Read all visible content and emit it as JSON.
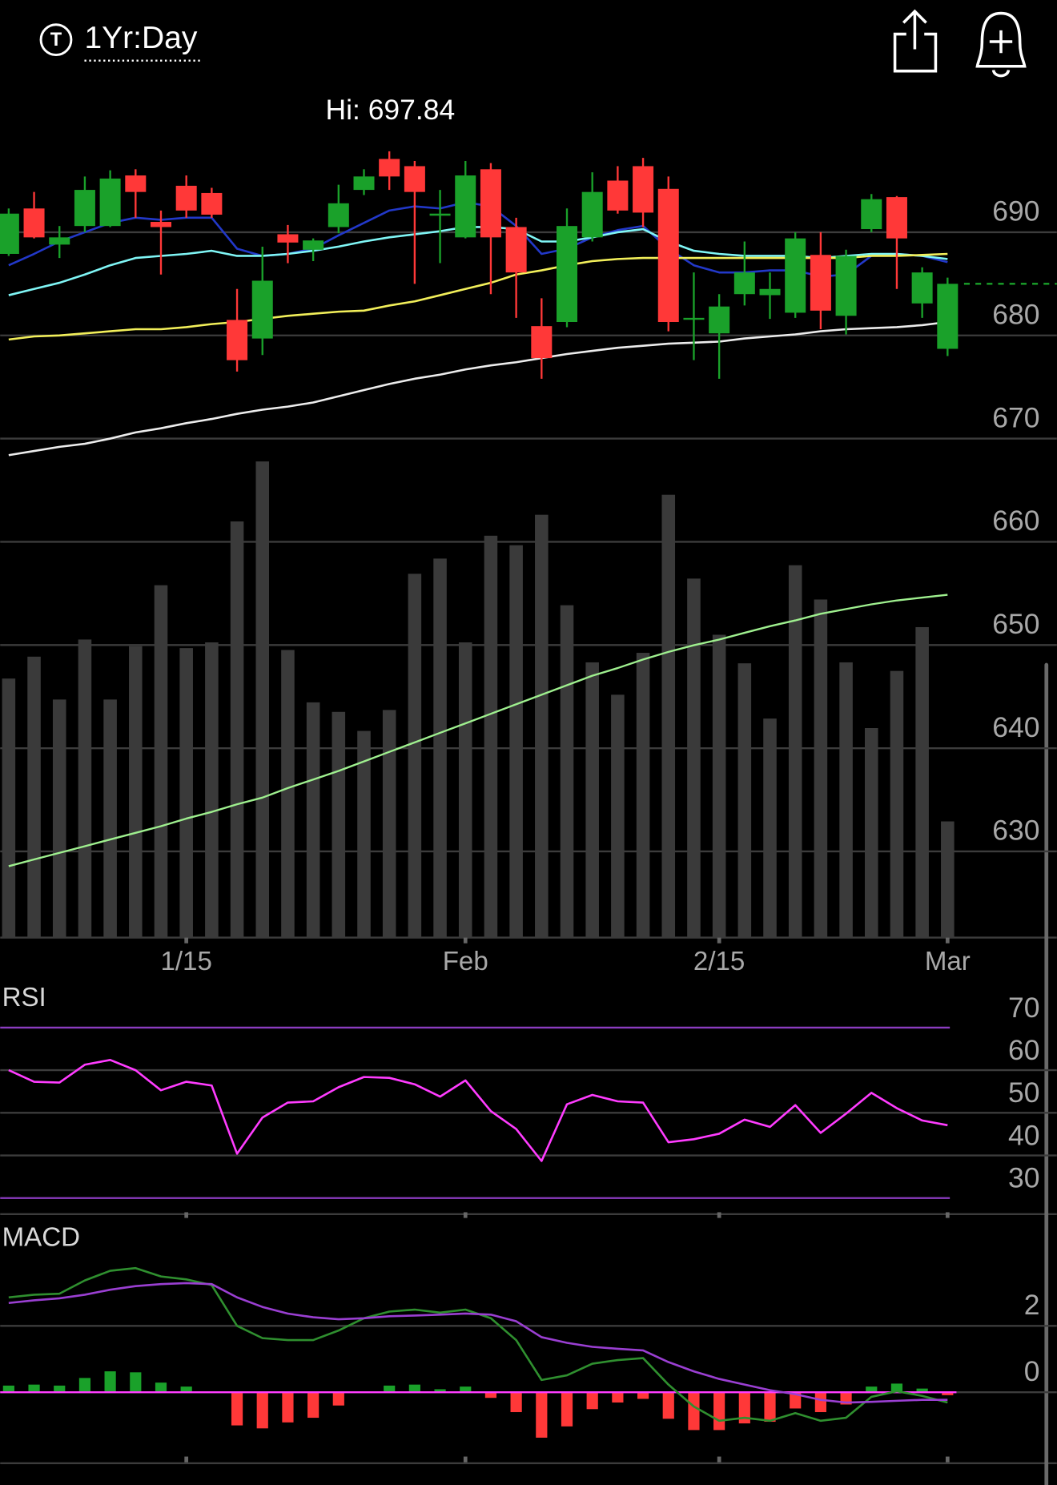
{
  "header": {
    "icon": "T",
    "period": "1Yr:Day"
  },
  "chart_data": [
    {
      "type": "candlestick",
      "annotation": "Hi: 697.84",
      "categories": [
        null,
        null,
        null,
        null,
        null,
        null,
        null,
        "1/15",
        null,
        null,
        null,
        null,
        null,
        null,
        null,
        null,
        null,
        null,
        "Feb",
        null,
        null,
        null,
        null,
        null,
        null,
        null,
        null,
        null,
        "2/15",
        null,
        null,
        null,
        null,
        null,
        null,
        null,
        null,
        "Mar"
      ],
      "open": [
        687.9,
        692.3,
        688.8,
        690.6,
        690.6,
        695.5,
        691.0,
        694.5,
        693.8,
        681.5,
        679.7,
        689.8,
        688.3,
        690.5,
        694.1,
        697.1,
        696.4,
        691.6,
        689.5,
        696.1,
        690.5,
        680.9,
        681.3,
        689.5,
        695.0,
        696.4,
        694.2,
        681.6,
        680.2,
        684.0,
        683.9,
        682.2,
        687.8,
        681.9,
        690.3,
        693.4,
        683.1,
        678.7
      ],
      "high": [
        692.3,
        693.9,
        690.6,
        695.4,
        696.0,
        696.1,
        692.1,
        695.5,
        694.3,
        684.5,
        688.6,
        690.7,
        689.4,
        694.6,
        696.1,
        697.84,
        696.9,
        694.1,
        696.9,
        696.7,
        691.4,
        683.6,
        692.3,
        695.8,
        696.4,
        697.2,
        695.4,
        686.1,
        684.0,
        689.1,
        686.1,
        690.0,
        690.0,
        688.3,
        693.7,
        693.5,
        686.6,
        685.6
      ],
      "low": [
        687.7,
        689.4,
        687.5,
        690.0,
        690.5,
        691.4,
        685.9,
        691.4,
        691.4,
        676.5,
        678.1,
        687.0,
        687.2,
        689.9,
        693.6,
        694.1,
        685.0,
        687.0,
        689.4,
        684.0,
        681.7,
        675.8,
        680.8,
        689.1,
        691.8,
        690.5,
        680.4,
        677.6,
        675.8,
        682.9,
        681.6,
        681.7,
        680.6,
        680.1,
        690.0,
        684.5,
        681.7,
        678.0
      ],
      "close": [
        691.8,
        689.5,
        689.5,
        694.1,
        695.2,
        693.9,
        690.5,
        692.1,
        691.7,
        677.6,
        685.3,
        689.0,
        689.2,
        692.8,
        695.4,
        695.4,
        693.9,
        691.8,
        695.5,
        689.5,
        686.1,
        677.8,
        690.6,
        693.9,
        692.1,
        691.9,
        681.3,
        681.7,
        682.8,
        686.1,
        684.5,
        689.4,
        682.4,
        687.7,
        693.2,
        689.4,
        686.1,
        685.0
      ],
      "up_color": "#1aa12a",
      "down_color": "#ff3838",
      "overlays": [
        {
          "color": "#2238c8",
          "values": [
            686.8,
            687.9,
            689.1,
            690.0,
            690.9,
            691.4,
            691.2,
            691.4,
            691.4,
            688.4,
            687.7,
            687.9,
            688.4,
            689.7,
            690.9,
            692.1,
            692.5,
            692.3,
            692.9,
            692.5,
            690.6,
            687.9,
            688.4,
            689.5,
            690.2,
            690.6,
            688.4,
            686.8,
            686.1,
            686.1,
            686.3,
            686.3,
            685.7,
            685.9,
            687.7,
            687.9,
            687.7,
            687.1
          ]
        },
        {
          "color": "#7ff5f5",
          "values": [
            683.9,
            684.5,
            685.1,
            685.9,
            686.8,
            687.5,
            687.7,
            687.9,
            688.2,
            687.7,
            687.7,
            687.9,
            688.2,
            688.6,
            689.1,
            689.5,
            689.8,
            690.1,
            690.5,
            690.5,
            690.3,
            689.1,
            689.1,
            689.5,
            690.0,
            690.3,
            689.1,
            688.2,
            687.9,
            687.7,
            687.7,
            687.7,
            687.5,
            687.7,
            687.9,
            687.9,
            687.7,
            687.4
          ]
        },
        {
          "color": "#f2ef5a",
          "values": [
            679.6,
            679.9,
            680.0,
            680.2,
            680.4,
            680.6,
            680.6,
            680.8,
            681.1,
            681.3,
            681.6,
            681.9,
            682.1,
            682.3,
            682.4,
            682.9,
            683.3,
            683.9,
            684.5,
            685.1,
            685.9,
            686.3,
            686.8,
            687.2,
            687.4,
            687.5,
            687.5,
            687.5,
            687.5,
            687.5,
            687.5,
            687.5,
            687.5,
            687.5,
            687.7,
            687.7,
            687.8,
            687.9
          ]
        },
        {
          "color": "#ececec",
          "values": [
            668.4,
            668.8,
            669.2,
            669.5,
            670.0,
            670.6,
            671.0,
            671.5,
            671.9,
            672.4,
            672.8,
            673.1,
            673.5,
            674.1,
            674.7,
            675.3,
            675.8,
            676.2,
            676.7,
            677.1,
            677.4,
            677.8,
            678.2,
            678.5,
            678.8,
            679.0,
            679.2,
            679.3,
            679.4,
            679.7,
            679.9,
            680.1,
            680.4,
            680.6,
            680.7,
            680.8,
            681.0,
            681.3
          ]
        }
      ],
      "ylim": [
        621.65,
        704.7
      ],
      "yticks": [
        630,
        640,
        650,
        660,
        670,
        680,
        690
      ],
      "grid": true,
      "grid_color": "#3c3c3c",
      "volume": [
        272,
        295,
        250,
        313,
        250,
        306,
        370,
        304,
        310,
        437,
        500,
        302,
        247,
        237,
        217,
        239,
        382,
        398,
        310,
        422,
        412,
        444,
        349,
        289,
        255,
        299,
        465,
        377,
        318,
        288,
        230,
        391,
        355,
        289,
        220,
        280,
        326,
        122
      ],
      "volume_color": "#3a3a3a",
      "volume_lim": [
        0,
        900
      ],
      "volume_ma": {
        "color": "#9ff08f",
        "values": [
          75,
          82,
          89,
          96,
          103,
          110,
          117,
          125,
          132,
          140,
          147,
          157,
          166,
          175,
          185,
          195,
          205,
          215,
          225,
          235,
          245,
          255,
          265,
          275,
          283,
          292,
          300,
          307,
          313,
          320,
          327,
          333,
          340,
          345,
          350,
          354,
          357,
          360
        ]
      },
      "last_color": "#1aa12a"
    },
    {
      "type": "line",
      "title": "RSI",
      "series": [
        {
          "color": "#ff3cff",
          "values": [
            60.0,
            57.3,
            57.1,
            61.3,
            62.4,
            60.0,
            55.3,
            57.3,
            56.4,
            40.4,
            48.9,
            52.4,
            52.7,
            56.0,
            58.4,
            58.2,
            56.7,
            53.8,
            57.6,
            50.4,
            46.2,
            38.7,
            52.0,
            54.2,
            52.7,
            52.4,
            43.1,
            43.8,
            45.1,
            48.4,
            46.7,
            51.8,
            45.3,
            49.8,
            54.7,
            51.1,
            48.2,
            47.1
          ]
        }
      ],
      "ylim": [
        26.67,
        80
      ],
      "yticks": [
        30,
        40,
        50,
        60,
        70
      ],
      "grid": true,
      "grid_color": "#3c3c3c",
      "bound_color": "#8b3cc0"
    },
    {
      "type": "macd",
      "title": "MACD",
      "series": [
        {
          "color": "#2f8f2f",
          "values": [
            2.86,
            2.94,
            2.97,
            3.37,
            3.66,
            3.74,
            3.49,
            3.4,
            3.23,
            2.0,
            1.63,
            1.57,
            1.57,
            1.86,
            2.23,
            2.43,
            2.49,
            2.4,
            2.49,
            2.23,
            1.57,
            0.37,
            0.51,
            0.86,
            0.97,
            1.03,
            0.23,
            -0.43,
            -0.86,
            -0.77,
            -0.86,
            -0.63,
            -0.86,
            -0.77,
            -0.14,
            0.03,
            -0.11,
            -0.31
          ]
        },
        {
          "color": "#9a3fd2",
          "values": [
            2.69,
            2.77,
            2.83,
            2.94,
            3.09,
            3.2,
            3.26,
            3.29,
            3.26,
            2.86,
            2.57,
            2.37,
            2.26,
            2.2,
            2.23,
            2.29,
            2.31,
            2.34,
            2.37,
            2.34,
            2.14,
            1.66,
            1.49,
            1.37,
            1.31,
            1.26,
            0.91,
            0.63,
            0.4,
            0.23,
            0.06,
            -0.06,
            -0.23,
            -0.31,
            -0.29,
            -0.26,
            -0.23,
            -0.23
          ]
        }
      ],
      "histogram": {
        "values": [
          0.2,
          0.23,
          0.2,
          0.43,
          0.63,
          0.6,
          0.29,
          0.17,
          0,
          -1.0,
          -1.09,
          -0.91,
          -0.77,
          -0.4,
          0,
          0.2,
          0.23,
          0.09,
          0.17,
          -0.17,
          -0.6,
          -1.37,
          -1.03,
          -0.51,
          -0.31,
          -0.2,
          -0.8,
          -1.14,
          -1.14,
          -0.94,
          -0.89,
          -0.49,
          -0.6,
          -0.37,
          0.17,
          0.26,
          0.11,
          -0.09
        ],
        "up_color": "#1aa12a",
        "down_color": "#ff3838"
      },
      "zero_color": "#ff3cff",
      "ylim": [
        -2.14,
        5.14
      ],
      "yticks": [
        0,
        2
      ],
      "grid": true,
      "grid_color": "#3c3c3c"
    }
  ]
}
